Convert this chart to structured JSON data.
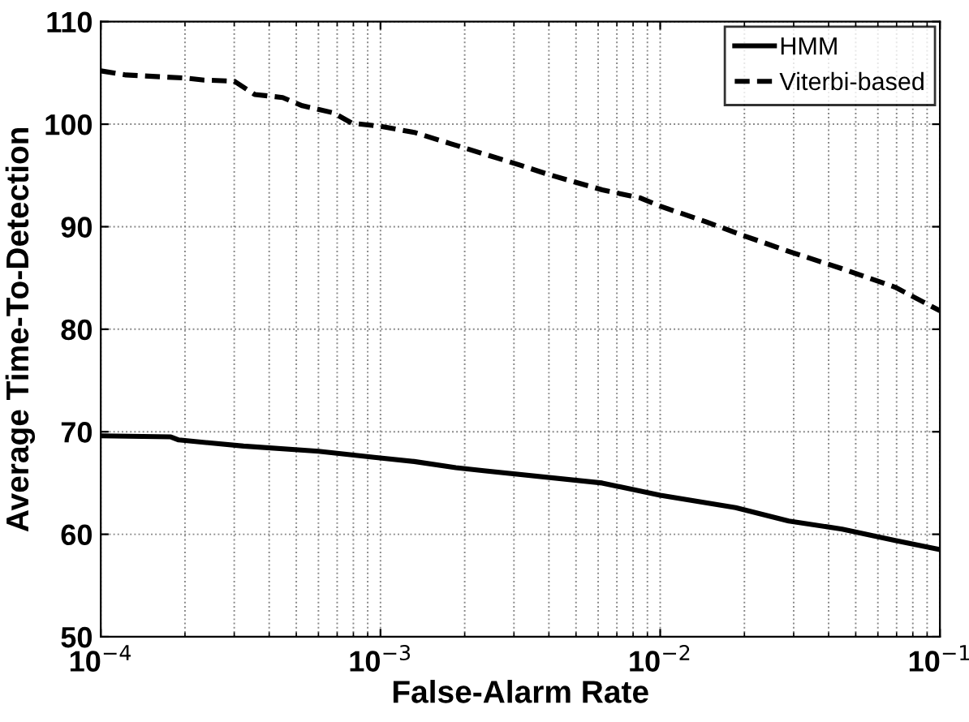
{
  "chart_data": {
    "type": "line",
    "xlabel": "False-Alarm Rate",
    "ylabel": "Average Time-To-Detection",
    "log": "x",
    "xlim": [
      0.0001,
      0.1
    ],
    "xticks": [
      {
        "value": 0.0001,
        "label": "10$^{−4}$"
      },
      {
        "value": 0.001,
        "label": "10$^{−3}$"
      },
      {
        "value": 0.01,
        "label": "10$^{−2}$"
      },
      {
        "value": 0.1,
        "label": "10$^{−1}$"
      }
    ],
    "ylim": [
      50,
      110
    ],
    "yticks": [
      50,
      60,
      70,
      80,
      90,
      100,
      110
    ],
    "grid": true,
    "legend": "top right",
    "series": [
      {
        "name": "HMM",
        "color": "#000000",
        "line_style": "solid",
        "x": [
          0.0001,
          0.000178,
          0.00019,
          0.000324,
          0.0006,
          0.00095,
          0.00132,
          0.00186,
          0.00234,
          0.0062,
          0.01,
          0.0186,
          0.0288,
          0.0447,
          0.0692,
          0.1
        ],
        "values": [
          69.6,
          69.5,
          69.2,
          68.6,
          68.1,
          67.5,
          67.1,
          66.5,
          66.2,
          65.0,
          63.8,
          62.6,
          61.3,
          60.5,
          59.4,
          58.5
        ]
      },
      {
        "name": "Viterbi-based",
        "color": "#000000",
        "line_style": "dashed",
        "x": [
          0.0001,
          0.000123,
          0.0002,
          0.000234,
          0.0003,
          0.000355,
          0.000447,
          0.000525,
          0.00068,
          0.00079,
          0.001,
          0.00132,
          0.00178,
          0.00234,
          0.00316,
          0.00398,
          0.0062,
          0.0085,
          0.01,
          0.0145,
          0.02,
          0.0288,
          0.0447,
          0.0692,
          0.1
        ],
        "values": [
          105.2,
          104.8,
          104.5,
          104.3,
          104.2,
          102.9,
          102.6,
          101.8,
          101.1,
          100.1,
          99.8,
          99.2,
          98.1,
          97.1,
          96.0,
          95.1,
          93.6,
          92.8,
          92.0,
          90.5,
          89.1,
          87.6,
          85.9,
          84.1,
          81.8
        ]
      }
    ]
  }
}
